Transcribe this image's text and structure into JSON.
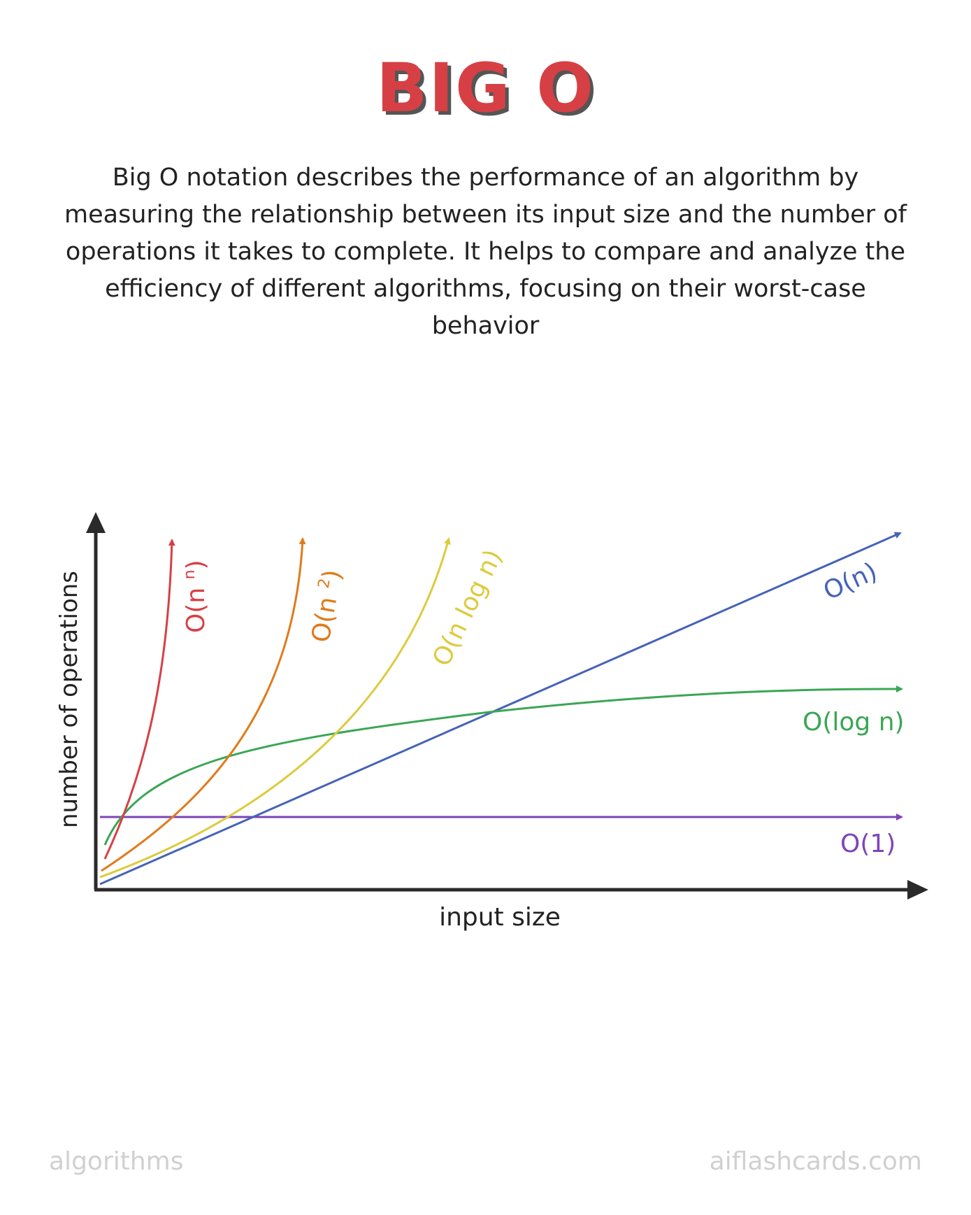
{
  "title": "BIG O",
  "description": "Big O notation describes the performance of an algorithm by measuring the relationship between its input size and the number of operations it takes to complete. It helps to compare and analyze the efficiency of different algorithms, focusing on their worst-case behavior",
  "diagram": {
    "y_axis_label": "number of operations",
    "x_axis_label": "input size",
    "curves": [
      {
        "id": "o-n-n",
        "label": "O(n ",
        "superscript": "n",
        "label_end": ")",
        "color": "#d64045"
      },
      {
        "id": "o-n2",
        "label": "O(n ",
        "superscript": "2",
        "label_end": ")",
        "color": "#e07b1a"
      },
      {
        "id": "o-nlogn",
        "label": "O(n log n)",
        "color": "#dccb3f"
      },
      {
        "id": "o-n",
        "label": "O(n)",
        "color": "#4563b8"
      },
      {
        "id": "o-logn",
        "label": "O(log n)",
        "color": "#3aa655"
      },
      {
        "id": "o-1",
        "label": "O(1)",
        "color": "#7e44b8"
      }
    ]
  },
  "footer": {
    "left": "algorithms",
    "right": "aiflashcards.com"
  }
}
